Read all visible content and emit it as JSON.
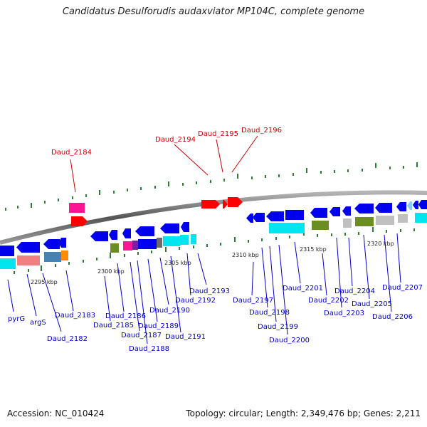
{
  "header": {
    "title": "Candidatus Desulforudis audaxviator MP104C, complete genome"
  },
  "footer": {
    "accession": "Accession: NC_010424",
    "summary": "Topology: circular; Length: 2,349,476 bp; Genes: 2,211"
  },
  "scale_labels": [
    "2295 kbp",
    "2300 kbp",
    "2305 kbp",
    "2310 kbp",
    "2315 kbp",
    "2320 kbp"
  ],
  "red_labels": [
    "Daud_2184",
    "Daud_2194",
    "Daud_2195",
    "Daud_2196"
  ],
  "blue_labels": [
    "pyrG",
    "argS",
    "Daud_2182",
    "Daud_2183",
    "Daud_2185",
    "Daud_2186",
    "Daud_2187",
    "Daud_2188",
    "Daud_2189",
    "Daud_2190",
    "Daud_2191",
    "Daud_2192",
    "Daud_2193",
    "Daud_2197",
    "Daud_2198",
    "Daud_2199",
    "Daud_2200",
    "Daud_2201",
    "Daud_2202",
    "Daud_2203",
    "Daud_2204",
    "Daud_2205",
    "Daud_2206",
    "Daud_2207"
  ],
  "colors": {
    "forward_red": "#ff0000",
    "reverse_blue": "#0000ee",
    "cyan": "#00e5f0",
    "olive": "#6b8e23",
    "magenta": "#ff1493",
    "grey": "#c0c0c0",
    "salmon": "#f08080",
    "steel": "#4682b4",
    "orange": "#ff8c00",
    "lightblue": "#87cefa"
  }
}
